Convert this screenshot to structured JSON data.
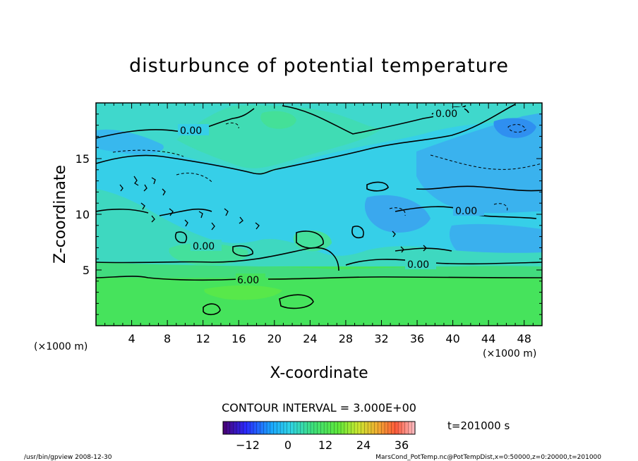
{
  "chart_data": {
    "type": "heatmap",
    "title": "disturbunce of potential temperature",
    "xlabel": "X-coordinate",
    "ylabel": "Z-coordinate",
    "x_unit_left": "(×1000 m)",
    "x_unit_right": "(×1000 m)",
    "xlim": [
      0,
      50
    ],
    "ylim": [
      0,
      20
    ],
    "x_ticks": [
      "4",
      "8",
      "12",
      "16",
      "20",
      "24",
      "28",
      "32",
      "36",
      "40",
      "44",
      "48"
    ],
    "y_ticks": [
      "5",
      "10",
      "15"
    ],
    "contour_interval_text": "CONTOUR INTERVAL = 3.000E+00",
    "contour_labels": [
      "0.00",
      "0.00",
      "0.00",
      "0.00",
      "0.00",
      "6.00"
    ],
    "colorbar": {
      "range": [
        -18,
        39
      ],
      "ticks": [
        "−12",
        "0",
        "12",
        "24",
        "36"
      ]
    },
    "time_label": "t=201000 s",
    "footer_left": "/usr/bin/gpview  2008-12-30",
    "footer_right": "MarsCond_PotTemp.nc@PotTempDist,x=0:50000,z=0:20000,t=201000",
    "colors": {
      "lower_band": "#46e35c",
      "upper_field": "#2fd4e6",
      "mid_field": "#3cc9ec",
      "cold_patch": "#3a9ef0",
      "contour": "#000000"
    }
  }
}
